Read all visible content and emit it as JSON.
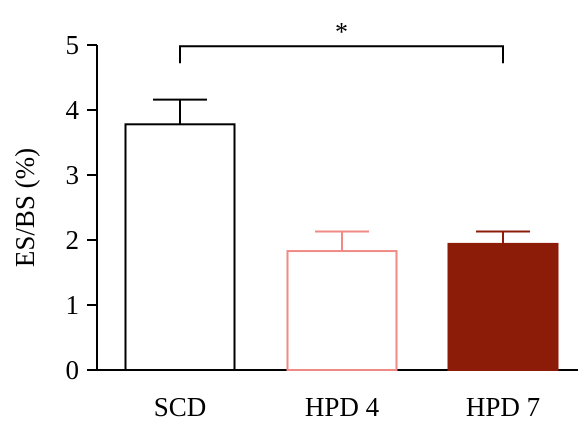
{
  "chart_data": {
    "type": "bar",
    "title": "",
    "xlabel": "",
    "ylabel": "ES/BS (%)",
    "ylim": [
      0,
      5
    ],
    "yticks": [
      0,
      1,
      2,
      3,
      4,
      5
    ],
    "ytick_labels": [
      "0",
      "1",
      "2",
      "3",
      "4",
      "5"
    ],
    "grid": false,
    "legend": "none",
    "categories": [
      "SCD",
      "HPD 4",
      "HPD 7"
    ],
    "values": [
      3.78,
      1.83,
      1.94
    ],
    "error_upper": [
      0.38,
      0.3,
      0.19
    ],
    "bar_styles": [
      {
        "fill": "#ffffff",
        "stroke": "#000000"
      },
      {
        "fill": "#ffffff",
        "stroke": "#f08a84"
      },
      {
        "fill": "#8c1c08",
        "stroke": "#8c1c08"
      }
    ],
    "significance": [
      {
        "from": "SCD",
        "to": "HPD 7",
        "label": "*",
        "level": 4.98
      }
    ]
  }
}
